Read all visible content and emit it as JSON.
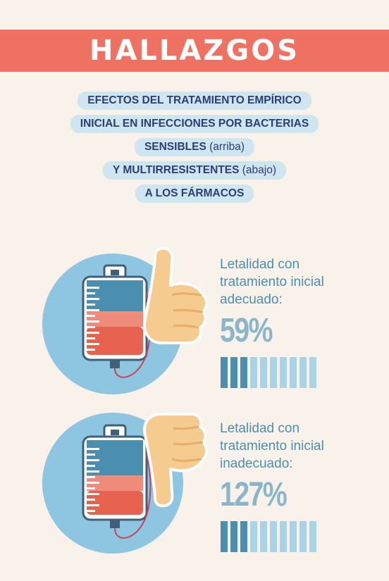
{
  "header": {
    "title": "HALLAZGOS"
  },
  "subtitle": {
    "line1": "EFECTOS DEL TRATAMIENTO EMPÍRICO",
    "line2": "INICIAL EN INFECCIONES POR BACTERIAS",
    "line3_bold": "SENSIBLES",
    "line3_light": "(arriba)",
    "line4_bold": "Y MULTIRRESISTENTES",
    "line4_light": "(abajo)",
    "line5": "A LOS FÁRMACOS"
  },
  "stats": [
    {
      "label_line1": "Letalidad con",
      "label_line2": "tratamiento inicial",
      "label_line3": "adecuado:",
      "value": "59%",
      "filled_fraction": 0.3,
      "gesture": "thumbs-up-hand-icon"
    },
    {
      "label_line1": "Letalidad con",
      "label_line2": "tratamiento inicial",
      "label_line3": "inadecuado:",
      "value": "127%",
      "filled_fraction": 0.3,
      "gesture": "thumbs-down-hand-icon"
    }
  ],
  "colors": {
    "banner": "#ee7162",
    "pill": "#cfe5ef",
    "text_dark": "#2a3f76",
    "accent_blue": "#4a8fb0",
    "light_blue": "#a9d4e8",
    "circle": "#8ec5e0",
    "blood": "#e8634f",
    "skin": "#f6cb90"
  }
}
